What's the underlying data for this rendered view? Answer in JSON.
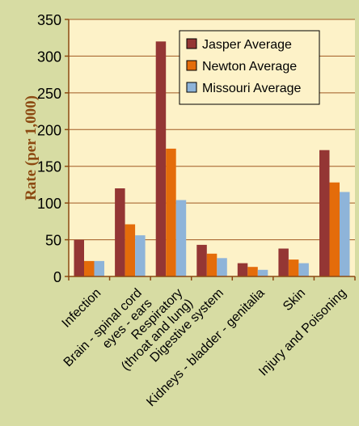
{
  "chart_data": {
    "type": "bar",
    "title": "",
    "xlabel": "",
    "ylabel": "Rate (per 1,000)",
    "ylim": [
      0,
      350
    ],
    "yticks": [
      0,
      50,
      100,
      150,
      200,
      250,
      300,
      350
    ],
    "grid": true,
    "legend_position": "top-right",
    "categories": [
      [
        "Infection"
      ],
      [
        "Brain - spinal cord",
        "eyes - ears"
      ],
      [
        "Respiratory",
        "(throat and lung)"
      ],
      [
        "Digestive system"
      ],
      [
        "Kidneys - bladder - genitalia"
      ],
      [
        "Skin"
      ],
      [
        "Injury and Poisoning"
      ]
    ],
    "series": [
      {
        "name": "Jasper Average",
        "color": "#943634",
        "values": [
          50,
          120,
          320,
          43,
          18,
          38,
          172
        ]
      },
      {
        "name": "Newton Average",
        "color": "#e46c0a",
        "values": [
          21,
          71,
          174,
          31,
          13,
          23,
          128
        ]
      },
      {
        "name": "Missouri Average",
        "color": "#8eb4d9",
        "values": [
          21,
          56,
          104,
          25,
          9,
          18,
          115
        ]
      }
    ],
    "plot_background": "#fdf2c8",
    "axis_color": "#8c4a12"
  }
}
